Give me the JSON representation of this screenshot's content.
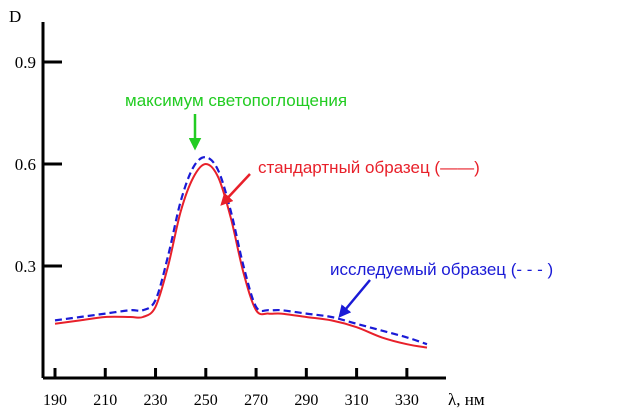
{
  "chart_data": {
    "type": "line",
    "title": "",
    "xlabel": "λ, нм",
    "ylabel": "D",
    "xlim": [
      190,
      340
    ],
    "ylim": [
      0,
      1.0
    ],
    "xticks": [
      190,
      210,
      230,
      250,
      270,
      290,
      310,
      330
    ],
    "yticks": [
      0.3,
      0.6,
      0.9
    ],
    "ytick_labels": [
      "0.3",
      "0.6",
      "0.9"
    ],
    "grid": false,
    "series": [
      {
        "name": "стандартный образец",
        "color": "#e8202a",
        "style": "solid",
        "x": [
          190,
          200,
          210,
          220,
          225,
          230,
          235,
          240,
          245,
          250,
          255,
          260,
          265,
          270,
          275,
          280,
          290,
          300,
          310,
          320,
          330,
          338
        ],
        "y": [
          0.13,
          0.14,
          0.15,
          0.15,
          0.15,
          0.18,
          0.3,
          0.46,
          0.56,
          0.6,
          0.56,
          0.44,
          0.28,
          0.17,
          0.16,
          0.16,
          0.15,
          0.14,
          0.12,
          0.09,
          0.07,
          0.06
        ]
      },
      {
        "name": "исследуемый образец",
        "color": "#1a1ad6",
        "style": "dashed",
        "x": [
          190,
          200,
          210,
          220,
          225,
          230,
          235,
          240,
          245,
          250,
          255,
          260,
          265,
          270,
          275,
          280,
          290,
          300,
          310,
          320,
          330,
          338
        ],
        "y": [
          0.14,
          0.15,
          0.16,
          0.17,
          0.17,
          0.2,
          0.33,
          0.49,
          0.59,
          0.62,
          0.58,
          0.46,
          0.3,
          0.18,
          0.17,
          0.17,
          0.16,
          0.15,
          0.13,
          0.11,
          0.09,
          0.07
        ]
      }
    ],
    "annotations": [
      {
        "text": "максимум светопоглощения",
        "color": "#22cc22",
        "target": [
          250,
          0.62
        ]
      },
      {
        "text": "стандартный образец  (——)",
        "color": "#e8202a",
        "target": [
          258,
          0.52
        ]
      },
      {
        "text": "исследуемый образец (- - - )",
        "color": "#1a1ad6",
        "target": [
          300,
          0.15
        ]
      }
    ]
  }
}
